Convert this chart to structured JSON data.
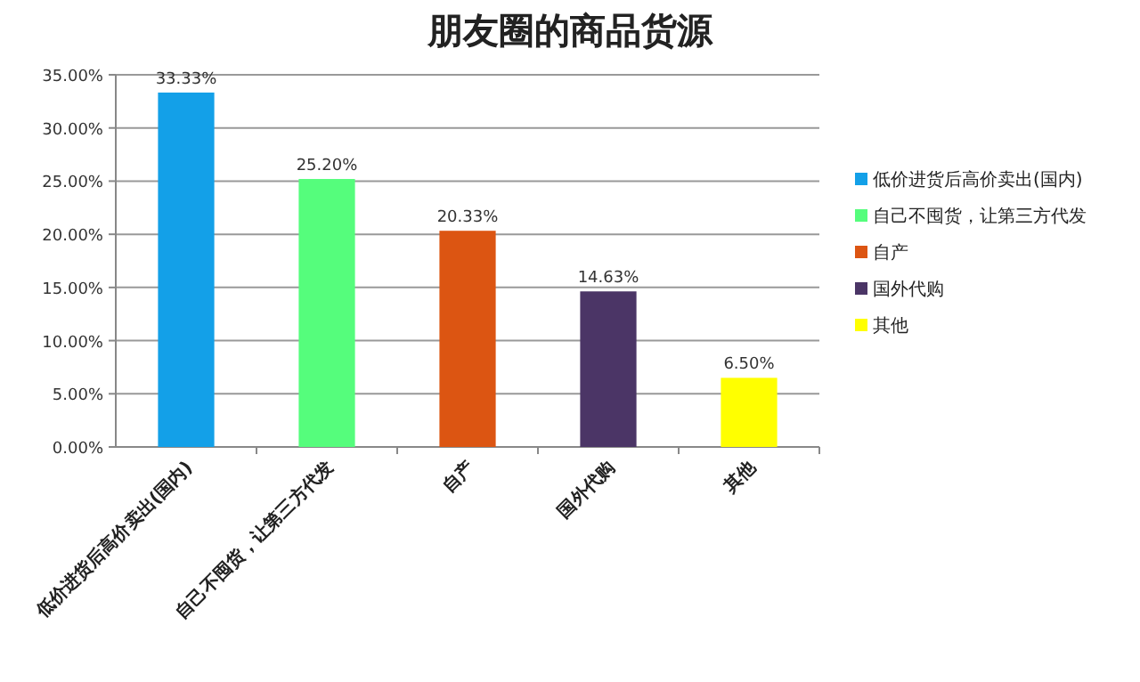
{
  "chart_data": {
    "type": "bar",
    "title": "朋友圈的商品货源",
    "categories": [
      "低价进货后高价卖出(国内)",
      "自己不囤货，让第三方代发",
      "自产",
      "国外代购",
      "其他"
    ],
    "series": [
      {
        "name": "低价进货后高价卖出(国内)",
        "color": "#13a0e8",
        "values": [
          33.33,
          null,
          null,
          null,
          null
        ],
        "value_labels": [
          "33.33%",
          null,
          null,
          null,
          null
        ]
      },
      {
        "name": "自己不囤货，让第三方代发",
        "color": "#55fd7c",
        "values": [
          null,
          25.2,
          null,
          null,
          null
        ],
        "value_labels": [
          null,
          "25.20%",
          null,
          null,
          null
        ]
      },
      {
        "name": "自产",
        "color": "#dc5512",
        "values": [
          null,
          null,
          20.33,
          null,
          null
        ],
        "value_labels": [
          null,
          null,
          "20.33%",
          null,
          null
        ]
      },
      {
        "name": "国外代购",
        "color": "#4b3566",
        "values": [
          null,
          null,
          null,
          14.63,
          null
        ],
        "value_labels": [
          null,
          null,
          null,
          "14.63%",
          null
        ]
      },
      {
        "name": "其他",
        "color": "#ffff00",
        "values": [
          null,
          null,
          null,
          null,
          6.5
        ],
        "value_labels": [
          null,
          null,
          null,
          null,
          "6.50%"
        ]
      }
    ],
    "stacked": true,
    "ylim": [
      0,
      35
    ],
    "yticks": [
      {
        "value": 0,
        "label": "0.00%"
      },
      {
        "value": 5,
        "label": "5.00%"
      },
      {
        "value": 10,
        "label": "10.00%"
      },
      {
        "value": 15,
        "label": "15.00%"
      },
      {
        "value": 20,
        "label": "20.00%"
      },
      {
        "value": 25,
        "label": "25.00%"
      },
      {
        "value": 30,
        "label": "30.00%"
      },
      {
        "value": 35,
        "label": "35.00%"
      }
    ],
    "grid": "y",
    "legend": "right"
  }
}
